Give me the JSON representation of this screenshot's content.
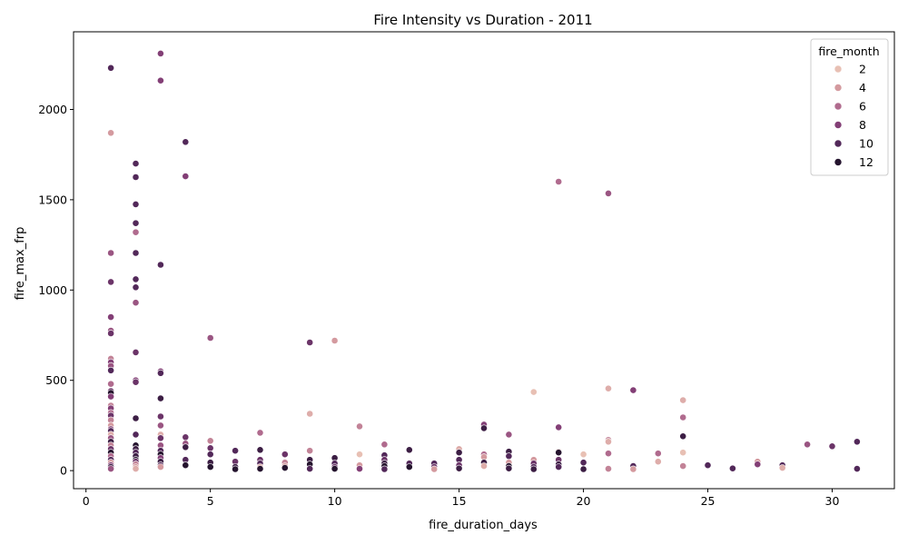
{
  "chart_data": {
    "type": "scatter",
    "title": "Fire Intensity vs Duration - 2011",
    "xlabel": "fire_duration_days",
    "ylabel": "fire_max_frp",
    "xlim": [
      -0.5,
      32.5
    ],
    "ylim": [
      -100,
      2430
    ],
    "xticks": [
      0,
      5,
      10,
      15,
      20,
      25,
      30
    ],
    "yticks": [
      0,
      500,
      1000,
      1500,
      2000
    ],
    "grid": false,
    "legend": {
      "title": "fire_month",
      "position": "top-right",
      "entries": [
        {
          "label": "2",
          "color": "#e8c0b4"
        },
        {
          "label": "4",
          "color": "#d49a9f"
        },
        {
          "label": "6",
          "color": "#b06b8e"
        },
        {
          "label": "8",
          "color": "#833f76"
        },
        {
          "label": "10",
          "color": "#522859"
        },
        {
          "label": "12",
          "color": "#25142e"
        }
      ]
    },
    "points": [
      [
        1,
        2230,
        10
      ],
      [
        1,
        1870,
        4
      ],
      [
        1,
        1205,
        7
      ],
      [
        1,
        1045,
        9
      ],
      [
        1,
        850,
        8
      ],
      [
        1,
        775,
        7
      ],
      [
        1,
        760,
        9
      ],
      [
        1,
        620,
        5
      ],
      [
        1,
        600,
        8
      ],
      [
        1,
        580,
        7
      ],
      [
        1,
        555,
        10
      ],
      [
        1,
        480,
        6
      ],
      [
        1,
        440,
        9
      ],
      [
        1,
        430,
        12
      ],
      [
        1,
        410,
        8
      ],
      [
        1,
        360,
        5
      ],
      [
        1,
        345,
        8
      ],
      [
        1,
        320,
        6
      ],
      [
        1,
        305,
        9
      ],
      [
        1,
        280,
        5
      ],
      [
        1,
        250,
        4
      ],
      [
        1,
        230,
        8
      ],
      [
        1,
        220,
        10
      ],
      [
        1,
        200,
        3
      ],
      [
        1,
        180,
        7
      ],
      [
        1,
        160,
        11
      ],
      [
        1,
        140,
        5
      ],
      [
        1,
        120,
        9
      ],
      [
        1,
        100,
        12
      ],
      [
        1,
        80,
        6
      ],
      [
        1,
        60,
        10
      ],
      [
        1,
        45,
        4
      ],
      [
        1,
        30,
        8
      ],
      [
        1,
        20,
        11
      ],
      [
        1,
        10,
        7
      ],
      [
        2,
        1700,
        10
      ],
      [
        2,
        1625,
        10
      ],
      [
        2,
        1475,
        10
      ],
      [
        2,
        1370,
        10
      ],
      [
        2,
        1320,
        6
      ],
      [
        2,
        1205,
        10
      ],
      [
        2,
        1060,
        10
      ],
      [
        2,
        1015,
        10
      ],
      [
        2,
        930,
        7
      ],
      [
        2,
        655,
        9
      ],
      [
        2,
        500,
        8
      ],
      [
        2,
        490,
        9
      ],
      [
        2,
        290,
        11
      ],
      [
        2,
        200,
        10
      ],
      [
        2,
        140,
        12
      ],
      [
        2,
        120,
        11
      ],
      [
        2,
        100,
        10
      ],
      [
        2,
        80,
        11
      ],
      [
        2,
        60,
        12
      ],
      [
        2,
        50,
        9
      ],
      [
        2,
        35,
        5
      ],
      [
        2,
        20,
        4
      ],
      [
        2,
        10,
        3
      ],
      [
        3,
        2310,
        8
      ],
      [
        3,
        2160,
        8
      ],
      [
        3,
        1140,
        10
      ],
      [
        3,
        550,
        8
      ],
      [
        3,
        540,
        10
      ],
      [
        3,
        400,
        11
      ],
      [
        3,
        300,
        9
      ],
      [
        3,
        250,
        7
      ],
      [
        3,
        200,
        3
      ],
      [
        3,
        180,
        9
      ],
      [
        3,
        140,
        7
      ],
      [
        3,
        110,
        10
      ],
      [
        3,
        90,
        12
      ],
      [
        3,
        70,
        8
      ],
      [
        3,
        50,
        11
      ],
      [
        3,
        30,
        10
      ],
      [
        3,
        20,
        4
      ],
      [
        4,
        1820,
        10
      ],
      [
        4,
        1630,
        8
      ],
      [
        4,
        185,
        9
      ],
      [
        4,
        150,
        7
      ],
      [
        4,
        130,
        11
      ],
      [
        4,
        60,
        10
      ],
      [
        4,
        30,
        12
      ],
      [
        5,
        735,
        7
      ],
      [
        5,
        165,
        5
      ],
      [
        5,
        125,
        9
      ],
      [
        5,
        90,
        10
      ],
      [
        5,
        45,
        11
      ],
      [
        5,
        20,
        12
      ],
      [
        6,
        110,
        10
      ],
      [
        6,
        50,
        9
      ],
      [
        6,
        20,
        11
      ],
      [
        6,
        8,
        12
      ],
      [
        7,
        210,
        6
      ],
      [
        7,
        115,
        11
      ],
      [
        7,
        60,
        9
      ],
      [
        7,
        40,
        10
      ],
      [
        7,
        20,
        3
      ],
      [
        7,
        10,
        12
      ],
      [
        8,
        90,
        9
      ],
      [
        8,
        45,
        5
      ],
      [
        8,
        25,
        4
      ],
      [
        8,
        15,
        12
      ],
      [
        9,
        710,
        9
      ],
      [
        9,
        315,
        3
      ],
      [
        9,
        110,
        5
      ],
      [
        9,
        60,
        11
      ],
      [
        9,
        35,
        12
      ],
      [
        9,
        10,
        10
      ],
      [
        10,
        720,
        4
      ],
      [
        10,
        70,
        11
      ],
      [
        10,
        40,
        10
      ],
      [
        10,
        20,
        9
      ],
      [
        10,
        10,
        12
      ],
      [
        11,
        245,
        5
      ],
      [
        11,
        90,
        2
      ],
      [
        11,
        30,
        4
      ],
      [
        11,
        10,
        8
      ],
      [
        12,
        145,
        6
      ],
      [
        12,
        85,
        10
      ],
      [
        12,
        60,
        9
      ],
      [
        12,
        40,
        11
      ],
      [
        12,
        25,
        12
      ],
      [
        12,
        8,
        10
      ],
      [
        13,
        115,
        11
      ],
      [
        13,
        40,
        10
      ],
      [
        13,
        20,
        12
      ],
      [
        14,
        40,
        10
      ],
      [
        14,
        20,
        9
      ],
      [
        14,
        8,
        4
      ],
      [
        15,
        120,
        3
      ],
      [
        15,
        100,
        11
      ],
      [
        15,
        60,
        10
      ],
      [
        15,
        30,
        9
      ],
      [
        15,
        12,
        11
      ],
      [
        16,
        255,
        8
      ],
      [
        16,
        235,
        11
      ],
      [
        16,
        90,
        6
      ],
      [
        16,
        75,
        4
      ],
      [
        16,
        45,
        11
      ],
      [
        16,
        25,
        3
      ],
      [
        17,
        200,
        7
      ],
      [
        17,
        105,
        11
      ],
      [
        17,
        80,
        10
      ],
      [
        17,
        45,
        4
      ],
      [
        17,
        25,
        12
      ],
      [
        17,
        12,
        11
      ],
      [
        18,
        435,
        2
      ],
      [
        18,
        60,
        4
      ],
      [
        18,
        40,
        9
      ],
      [
        18,
        20,
        10
      ],
      [
        18,
        8,
        11
      ],
      [
        19,
        1600,
        6
      ],
      [
        19,
        240,
        8
      ],
      [
        19,
        105,
        3
      ],
      [
        19,
        100,
        12
      ],
      [
        19,
        60,
        9
      ],
      [
        19,
        35,
        11
      ],
      [
        19,
        20,
        10
      ],
      [
        20,
        90,
        2
      ],
      [
        20,
        45,
        10
      ],
      [
        20,
        8,
        11
      ],
      [
        21,
        1535,
        7
      ],
      [
        21,
        455,
        3
      ],
      [
        21,
        170,
        5
      ],
      [
        21,
        160,
        3
      ],
      [
        21,
        95,
        6
      ],
      [
        21,
        10,
        5
      ],
      [
        22,
        445,
        8
      ],
      [
        22,
        25,
        10
      ],
      [
        22,
        8,
        4
      ],
      [
        23,
        95,
        6
      ],
      [
        23,
        50,
        3
      ],
      [
        24,
        390,
        3
      ],
      [
        24,
        295,
        6
      ],
      [
        24,
        190,
        11
      ],
      [
        24,
        100,
        2
      ],
      [
        24,
        25,
        5
      ],
      [
        25,
        30,
        10
      ],
      [
        26,
        12,
        10
      ],
      [
        27,
        50,
        4
      ],
      [
        27,
        35,
        8
      ],
      [
        28,
        30,
        10
      ],
      [
        28,
        15,
        3
      ],
      [
        29,
        145,
        7
      ],
      [
        30,
        135,
        9
      ],
      [
        31,
        160,
        10
      ],
      [
        31,
        10,
        10
      ]
    ]
  }
}
